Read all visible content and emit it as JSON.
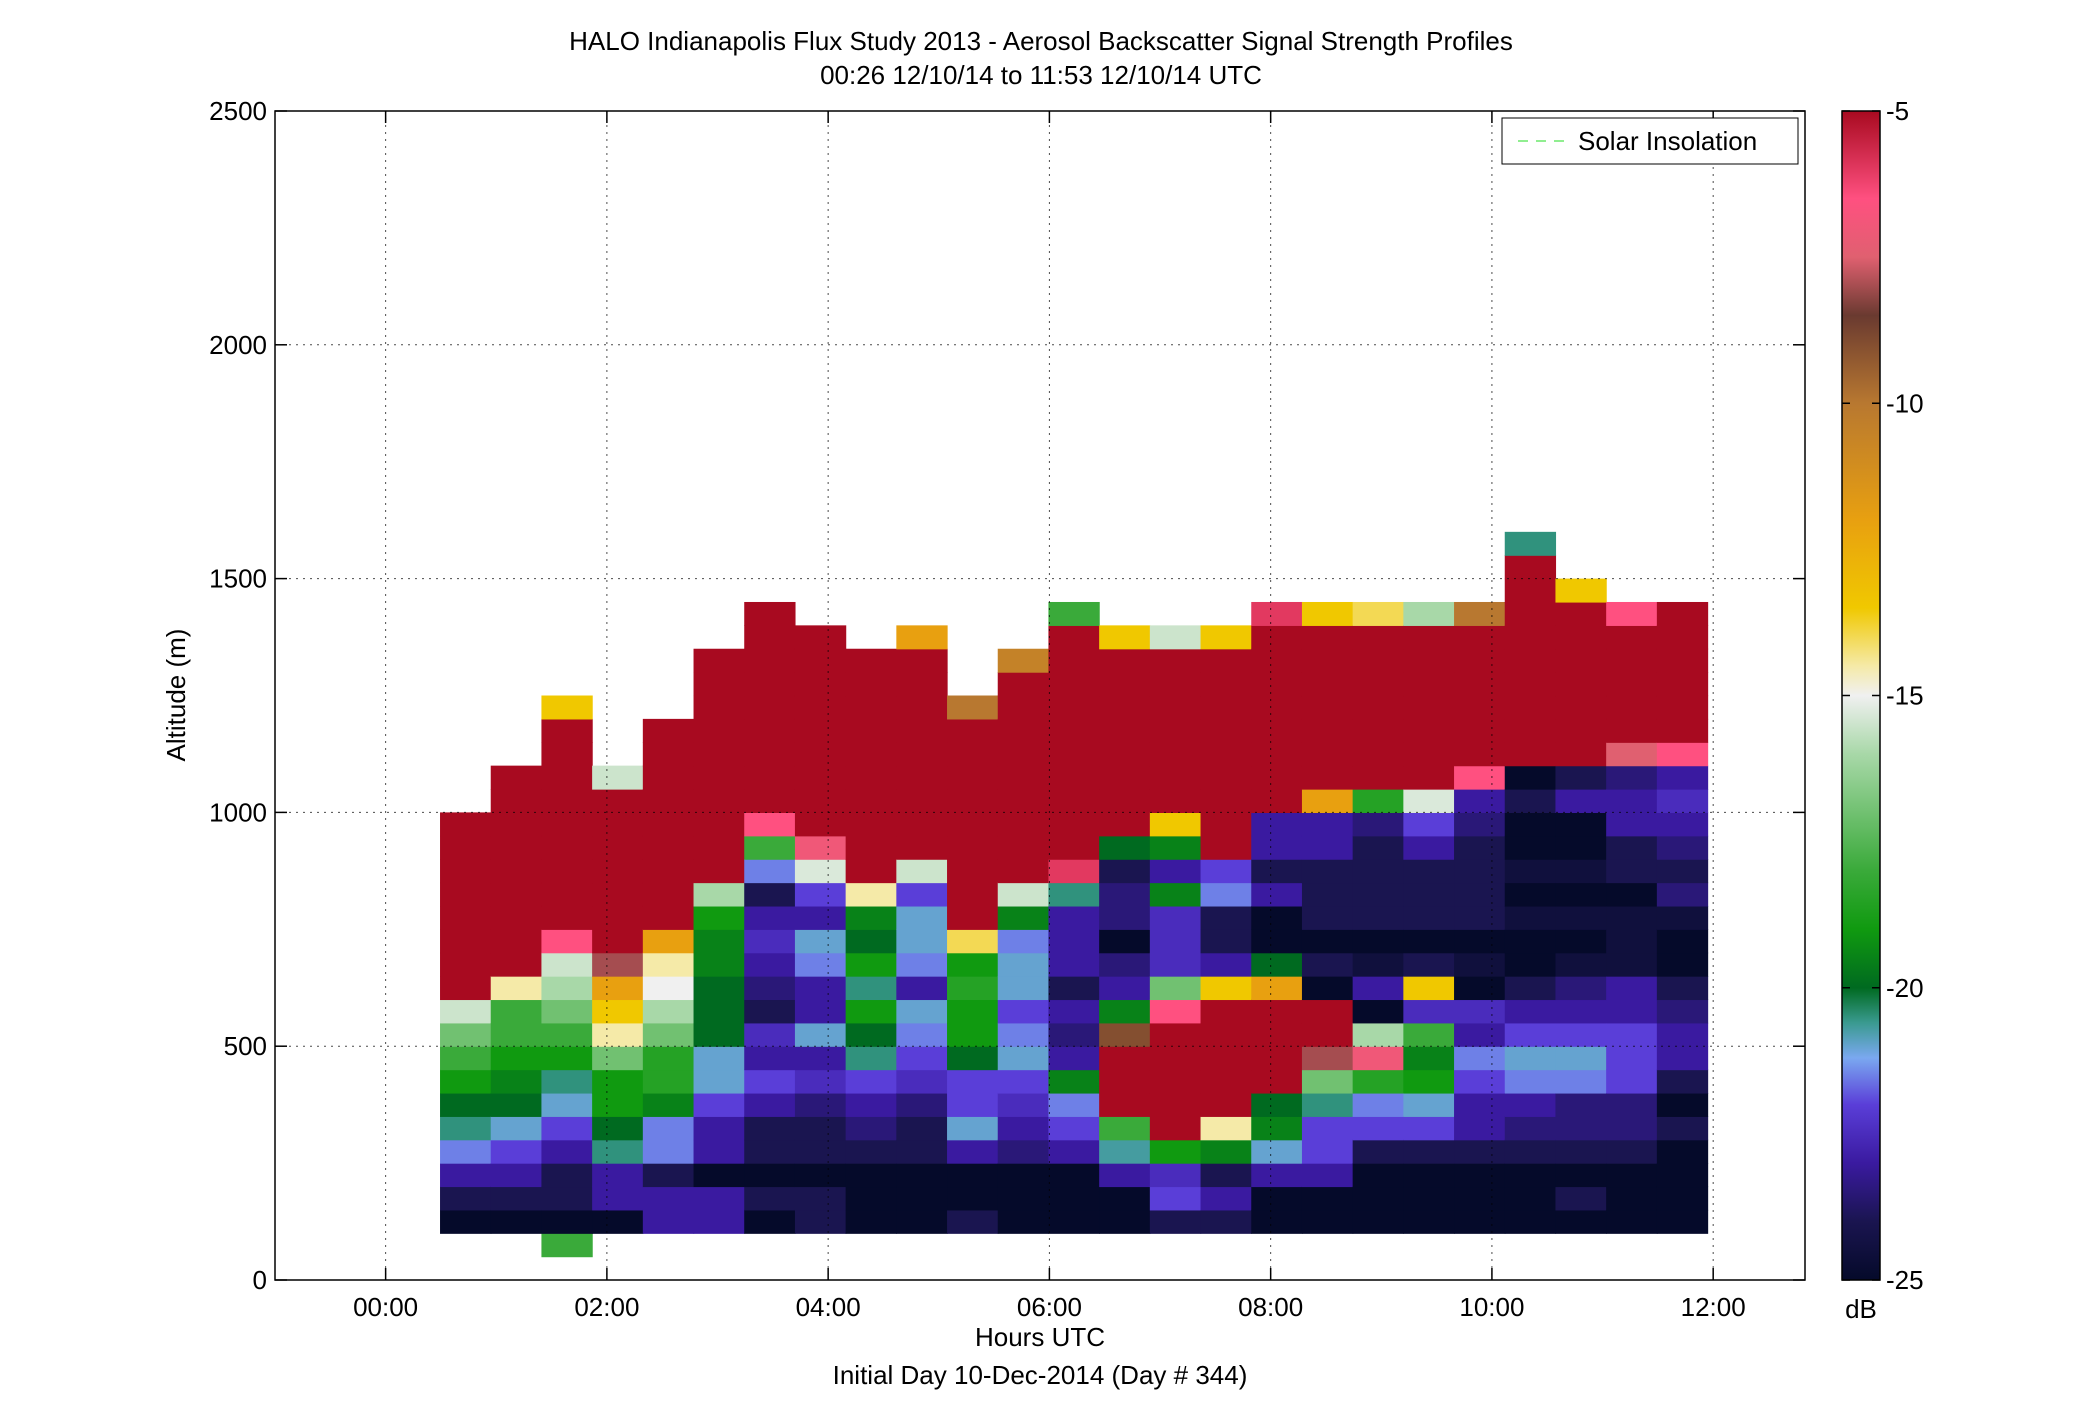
{
  "chart_data": {
    "type": "heatmap",
    "title": "HALO Indianapolis Flux Study 2013 - Aerosol Backscatter Signal Strength Profiles",
    "subtitle": "00:26 12/10/14 to 11:53 12/10/14  UTC",
    "xlabel": "Hours UTC",
    "xlabel2": "Initial Day 10-Dec-2014 (Day # 344)",
    "ylabel": "Altitude (m)",
    "xlim": [
      -1,
      12.83
    ],
    "ylim": [
      0,
      2500
    ],
    "xticks": [
      0,
      2,
      4,
      6,
      8,
      10,
      12
    ],
    "xtick_labels": [
      "00:00",
      "02:00",
      "04:00",
      "06:00",
      "08:00",
      "10:00",
      "12:00"
    ],
    "yticks": [
      0,
      500,
      1000,
      1500,
      2000,
      2500
    ],
    "ytick_labels": [
      "0",
      "500",
      "1000",
      "1500",
      "2000",
      "2500"
    ],
    "grid": true,
    "legend": {
      "position": "top-right",
      "entries": [
        {
          "label": "Solar Insolation",
          "style": "dashed",
          "color": "#90ee90"
        }
      ]
    },
    "colorbar": {
      "label": "dB",
      "min": -25,
      "max": -5,
      "ticks": [
        -25,
        -20,
        -15,
        -10,
        -5
      ],
      "tick_labels": [
        "-25",
        "-20",
        "-15",
        "-10",
        "-5"
      ],
      "stops": [
        {
          "v": -25,
          "c": "#050a2a"
        },
        {
          "v": -24,
          "c": "#1a1550"
        },
        {
          "v": -23,
          "c": "#3a1aa0"
        },
        {
          "v": -22,
          "c": "#5a3ed8"
        },
        {
          "v": -21.2,
          "c": "#7aa8f0"
        },
        {
          "v": -20.6,
          "c": "#3a9a90"
        },
        {
          "v": -20,
          "c": "#006a20"
        },
        {
          "v": -19,
          "c": "#109a10"
        },
        {
          "v": -18,
          "c": "#3aaa3a"
        },
        {
          "v": -16,
          "c": "#a8d8a8"
        },
        {
          "v": -15,
          "c": "#f0f0f0"
        },
        {
          "v": -14.5,
          "c": "#f5eaa8"
        },
        {
          "v": -13.5,
          "c": "#f0c800"
        },
        {
          "v": -12,
          "c": "#e8a010"
        },
        {
          "v": -10,
          "c": "#b87830"
        },
        {
          "v": -8.5,
          "c": "#6a3a30"
        },
        {
          "v": -7.5,
          "c": "#e06070"
        },
        {
          "v": -6.5,
          "c": "#ff5080"
        },
        {
          "v": -5,
          "c": "#a80a20"
        }
      ]
    },
    "x_start": 0.4917,
    "x_step": 0.4583,
    "y_start": 50,
    "y_step": 50,
    "columns": [
      {
        "bottom": 100,
        "values": [
          -25,
          -24,
          -23,
          -21.5,
          -20.5,
          -20,
          -19,
          -18,
          -17,
          -15.5,
          -5,
          -5,
          -5,
          -5,
          -5,
          -5,
          -5,
          -5
        ]
      },
      {
        "bottom": 100,
        "values": [
          -25,
          -24,
          -23,
          -22,
          -21,
          -20,
          -19.5,
          -19,
          -18,
          -18,
          -14.5,
          -5,
          -5,
          -5,
          -5,
          -5,
          -5,
          -5,
          -5,
          -5
        ]
      },
      {
        "bottom": 50,
        "values": [
          -18,
          -25,
          -24,
          -24,
          -23,
          -22,
          -21,
          -20.5,
          -19,
          -18,
          -17,
          -16,
          -15.5,
          -6.5,
          -5,
          -5,
          -5,
          -5,
          -5,
          -5,
          -5,
          -5,
          -5,
          -13.5
        ]
      },
      {
        "bottom": 100,
        "values": [
          -25,
          -23,
          -23,
          -20.5,
          -20,
          -19,
          -19,
          -17,
          -14.5,
          -13.5,
          -12,
          -8,
          -5,
          -5,
          -5,
          -5,
          -5,
          -5,
          -5,
          -15.5
        ]
      },
      {
        "bottom": 100,
        "values": [
          -23,
          -23,
          -24,
          -21.5,
          -21.5,
          -19.5,
          -18.5,
          -18.5,
          -17,
          -16,
          -15,
          -14.5,
          -12,
          -5,
          -5,
          -5,
          -5,
          -5,
          -5,
          -5,
          -5,
          -5
        ]
      },
      {
        "bottom": 100,
        "values": [
          -23,
          -23,
          -25,
          -23,
          -23,
          -22,
          -21,
          -21,
          -20,
          -20,
          -20,
          -19.5,
          -19.5,
          -19,
          -16,
          -5,
          -5,
          -5,
          -5,
          -5,
          -5,
          -5,
          -5,
          -5,
          -5
        ]
      },
      {
        "bottom": 100,
        "values": [
          -25,
          -24,
          -25,
          -24,
          -24,
          -23,
          -22,
          -23,
          -22.5,
          -24,
          -23.5,
          -23,
          -22.5,
          -23,
          -24,
          -21.5,
          -18,
          -6.5,
          -5,
          -5,
          -5,
          -5,
          -5,
          -5,
          -5,
          -5,
          -5
        ]
      },
      {
        "bottom": 100,
        "values": [
          -24,
          -24,
          -25,
          -24,
          -24,
          -23.5,
          -22.5,
          -23,
          -21,
          -23,
          -23,
          -21.5,
          -21,
          -23,
          -22,
          -15.3,
          -7,
          -5,
          -5,
          -5,
          -5,
          -5,
          -5,
          -5,
          -5,
          -5
        ]
      },
      {
        "bottom": 100,
        "values": [
          -25,
          -25,
          -25,
          -24,
          -23.5,
          -23,
          -22,
          -20.5,
          -20,
          -19,
          -20.5,
          -19,
          -20,
          -19.5,
          -14.5,
          -5,
          -5,
          -5,
          -5,
          -5,
          -5,
          -5,
          -5,
          -5,
          -5
        ]
      },
      {
        "bottom": 100,
        "values": [
          -25,
          -25,
          -25,
          -24,
          -24,
          -23.5,
          -22.5,
          -22,
          -21.5,
          -21,
          -23,
          -21.5,
          -21,
          -21,
          -22,
          -15.5,
          -5,
          -5,
          -5,
          -5,
          -5,
          -5,
          -5,
          -5,
          -5,
          -12
        ]
      },
      {
        "bottom": 100,
        "values": [
          -24,
          -25,
          -25,
          -23,
          -21,
          -22,
          -22,
          -20,
          -19,
          -19,
          -18.5,
          -19,
          -14,
          -5,
          -5,
          -5,
          -5,
          -5,
          -5,
          -5,
          -5,
          -5,
          -10
        ]
      },
      {
        "bottom": 100,
        "values": [
          -25,
          -25,
          -25,
          -23.5,
          -23,
          -22.5,
          -22,
          -21,
          -21.5,
          -22,
          -21,
          -21,
          -21.5,
          -19.5,
          -15.5,
          -5,
          -5,
          -5,
          -5,
          -5,
          -5,
          -5,
          -5,
          -5,
          -10.5
        ]
      },
      {
        "bottom": 100,
        "values": [
          -25,
          -25,
          -25,
          -23,
          -22,
          -21.5,
          -19.5,
          -23,
          -23.5,
          -23,
          -24,
          -23,
          -23,
          -23,
          -20.5,
          -6,
          -5,
          -5,
          -5,
          -5,
          -5,
          -5,
          -5,
          -5,
          -5,
          -5,
          -18
        ]
      },
      {
        "bottom": 100,
        "values": [
          -25,
          -25,
          -23,
          -20.7,
          -18,
          -5,
          -5,
          -5,
          -9,
          -19.5,
          -23,
          -23.5,
          -25,
          -23.5,
          -23.5,
          -24,
          -20,
          -5,
          -5,
          -5,
          -5,
          -5,
          -5,
          -5,
          -5,
          -13.5
        ]
      },
      {
        "bottom": 100,
        "values": [
          -24,
          -22,
          -22.5,
          -19,
          -5,
          -5,
          -5,
          -5,
          -5,
          -6.5,
          -17,
          -22.5,
          -22.5,
          -22.5,
          -19.5,
          -23,
          -19.5,
          -13.5,
          -5,
          -5,
          -5,
          -5,
          -5,
          -5,
          -5,
          -15.5
        ]
      },
      {
        "bottom": 100,
        "values": [
          -24,
          -23,
          -24,
          -19.5,
          -14.5,
          -5,
          -5,
          -5,
          -5,
          -5,
          -13.5,
          -23,
          -24,
          -24,
          -21.5,
          -22,
          -5,
          -5,
          -5,
          -5,
          -5,
          -5,
          -5,
          -5,
          -5,
          -13.5
        ]
      },
      {
        "bottom": 100,
        "values": [
          -25,
          -25,
          -23,
          -21,
          -19.5,
          -20,
          -5,
          -5,
          -5,
          -5,
          -12,
          -20,
          -25,
          -25,
          -23,
          -24,
          -23,
          -23,
          -5,
          -5,
          -5,
          -5,
          -5,
          -5,
          -5,
          -5,
          -6
        ]
      },
      {
        "bottom": 100,
        "values": [
          -25,
          -25,
          -23,
          -22,
          -22,
          -20.5,
          -17,
          -8,
          -5,
          -5,
          -25,
          -24,
          -25,
          -24,
          -24,
          -24,
          -23,
          -23,
          -12,
          -5,
          -5,
          -5,
          -5,
          -5,
          -5,
          -5,
          -13.5
        ]
      },
      {
        "bottom": 100,
        "values": [
          -25,
          -25,
          -25,
          -24,
          -22,
          -21.5,
          -18.5,
          -7,
          -16,
          -25,
          -23,
          -24.5,
          -25,
          -24,
          -24,
          -24,
          -24,
          -23.5,
          -18.5,
          -5,
          -5,
          -5,
          -5,
          -5,
          -5,
          -5,
          -14
        ]
      },
      {
        "bottom": 100,
        "values": [
          -25,
          -25,
          -25,
          -24,
          -22,
          -21,
          -19,
          -19.5,
          -18,
          -22.5,
          -13.5,
          -24,
          -25,
          -24,
          -24,
          -24,
          -23,
          -22,
          -15.3,
          -5,
          -5,
          -5,
          -5,
          -5,
          -5,
          -5,
          -16
        ]
      },
      {
        "bottom": 100,
        "values": [
          -25,
          -25,
          -25,
          -24,
          -23,
          -23,
          -22,
          -21.5,
          -23,
          -22.5,
          -25,
          -24.5,
          -25,
          -24,
          -24,
          -24,
          -24,
          -23.5,
          -23,
          -6.5,
          -5,
          -5,
          -5,
          -5,
          -5,
          -5,
          -10
        ]
      },
      {
        "bottom": 100,
        "values": [
          -25,
          -25,
          -25,
          -24,
          -23.5,
          -23,
          -21.5,
          -21,
          -22,
          -23,
          -24,
          -25,
          -25,
          -24.5,
          -25,
          -24.5,
          -25,
          -25,
          -24,
          -25,
          -5,
          -5,
          -5,
          -5,
          -5,
          -5,
          -5,
          -5,
          -5,
          -20.5
        ]
      },
      {
        "bottom": 100,
        "values": [
          -25,
          -24,
          -25,
          -24,
          -23.5,
          -23.5,
          -21.5,
          -21,
          -22,
          -23,
          -23.5,
          -24.5,
          -25,
          -24.5,
          -25,
          -24.5,
          -25,
          -25,
          -23,
          -24,
          -5,
          -5,
          -5,
          -5,
          -5,
          -5,
          -5,
          -13.5
        ]
      },
      {
        "bottom": 100,
        "values": [
          -25,
          -25,
          -25,
          -24,
          -23.5,
          -23.5,
          -22,
          -22,
          -22,
          -23,
          -23,
          -24.5,
          -24.5,
          -24.5,
          -25,
          -24,
          -24,
          -23,
          -23,
          -23.5,
          -7.5,
          -5,
          -5,
          -5,
          -5,
          -5,
          -6.5
        ]
      },
      {
        "bottom": 100,
        "values": [
          -25,
          -25,
          -25,
          -25,
          -24,
          -25,
          -24,
          -23,
          -23,
          -23.5,
          -24,
          -25,
          -25,
          -24.5,
          -23.5,
          -24,
          -23.5,
          -23,
          -22.5,
          -23,
          -6.5,
          -5,
          -5,
          -5,
          -5,
          -5,
          -5
        ]
      }
    ]
  }
}
